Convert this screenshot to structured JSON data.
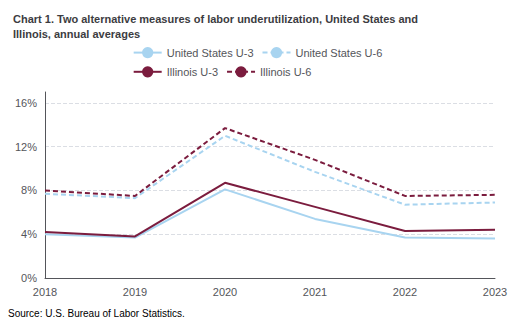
{
  "chart_data": {
    "type": "line",
    "title": "Chart 1. Two alternative measures of labor underutilization, United States and\nIllinois, annual averages",
    "x": [
      2018,
      2019,
      2020,
      2021,
      2022,
      2023
    ],
    "xlim": [
      2018,
      2023
    ],
    "xticks": [
      2018,
      2019,
      2020,
      2021,
      2022,
      2023
    ],
    "ylim": [
      0,
      17
    ],
    "yticks": [
      {
        "value": 0,
        "label": "0%"
      },
      {
        "value": 4,
        "label": "4%"
      },
      {
        "value": 8,
        "label": "8%"
      },
      {
        "value": 12,
        "label": "12%"
      },
      {
        "value": 16,
        "label": "16%"
      }
    ],
    "grid": true,
    "legend": "top",
    "annotations": [
      "Source: U.S. Bureau of Labor Statistics."
    ],
    "series": [
      {
        "name": "United States U-3",
        "color": "#A8D4F0",
        "line_style": "solid",
        "values": [
          4.0,
          3.7,
          8.1,
          5.4,
          3.7,
          3.6
        ]
      },
      {
        "name": "United States U-6",
        "color": "#A8D4F0",
        "line_style": "dashed",
        "values": [
          7.7,
          7.3,
          13.0,
          9.7,
          6.7,
          6.9
        ]
      },
      {
        "name": "Illinois U-3",
        "color": "#7B1C3E",
        "line_style": "solid",
        "values": [
          4.2,
          3.8,
          8.7,
          6.5,
          4.3,
          4.4
        ]
      },
      {
        "name": "Illinois U-6",
        "color": "#7B1C3E",
        "line_style": "dashed",
        "values": [
          8.0,
          7.5,
          13.7,
          10.8,
          7.5,
          7.6
        ]
      }
    ]
  }
}
